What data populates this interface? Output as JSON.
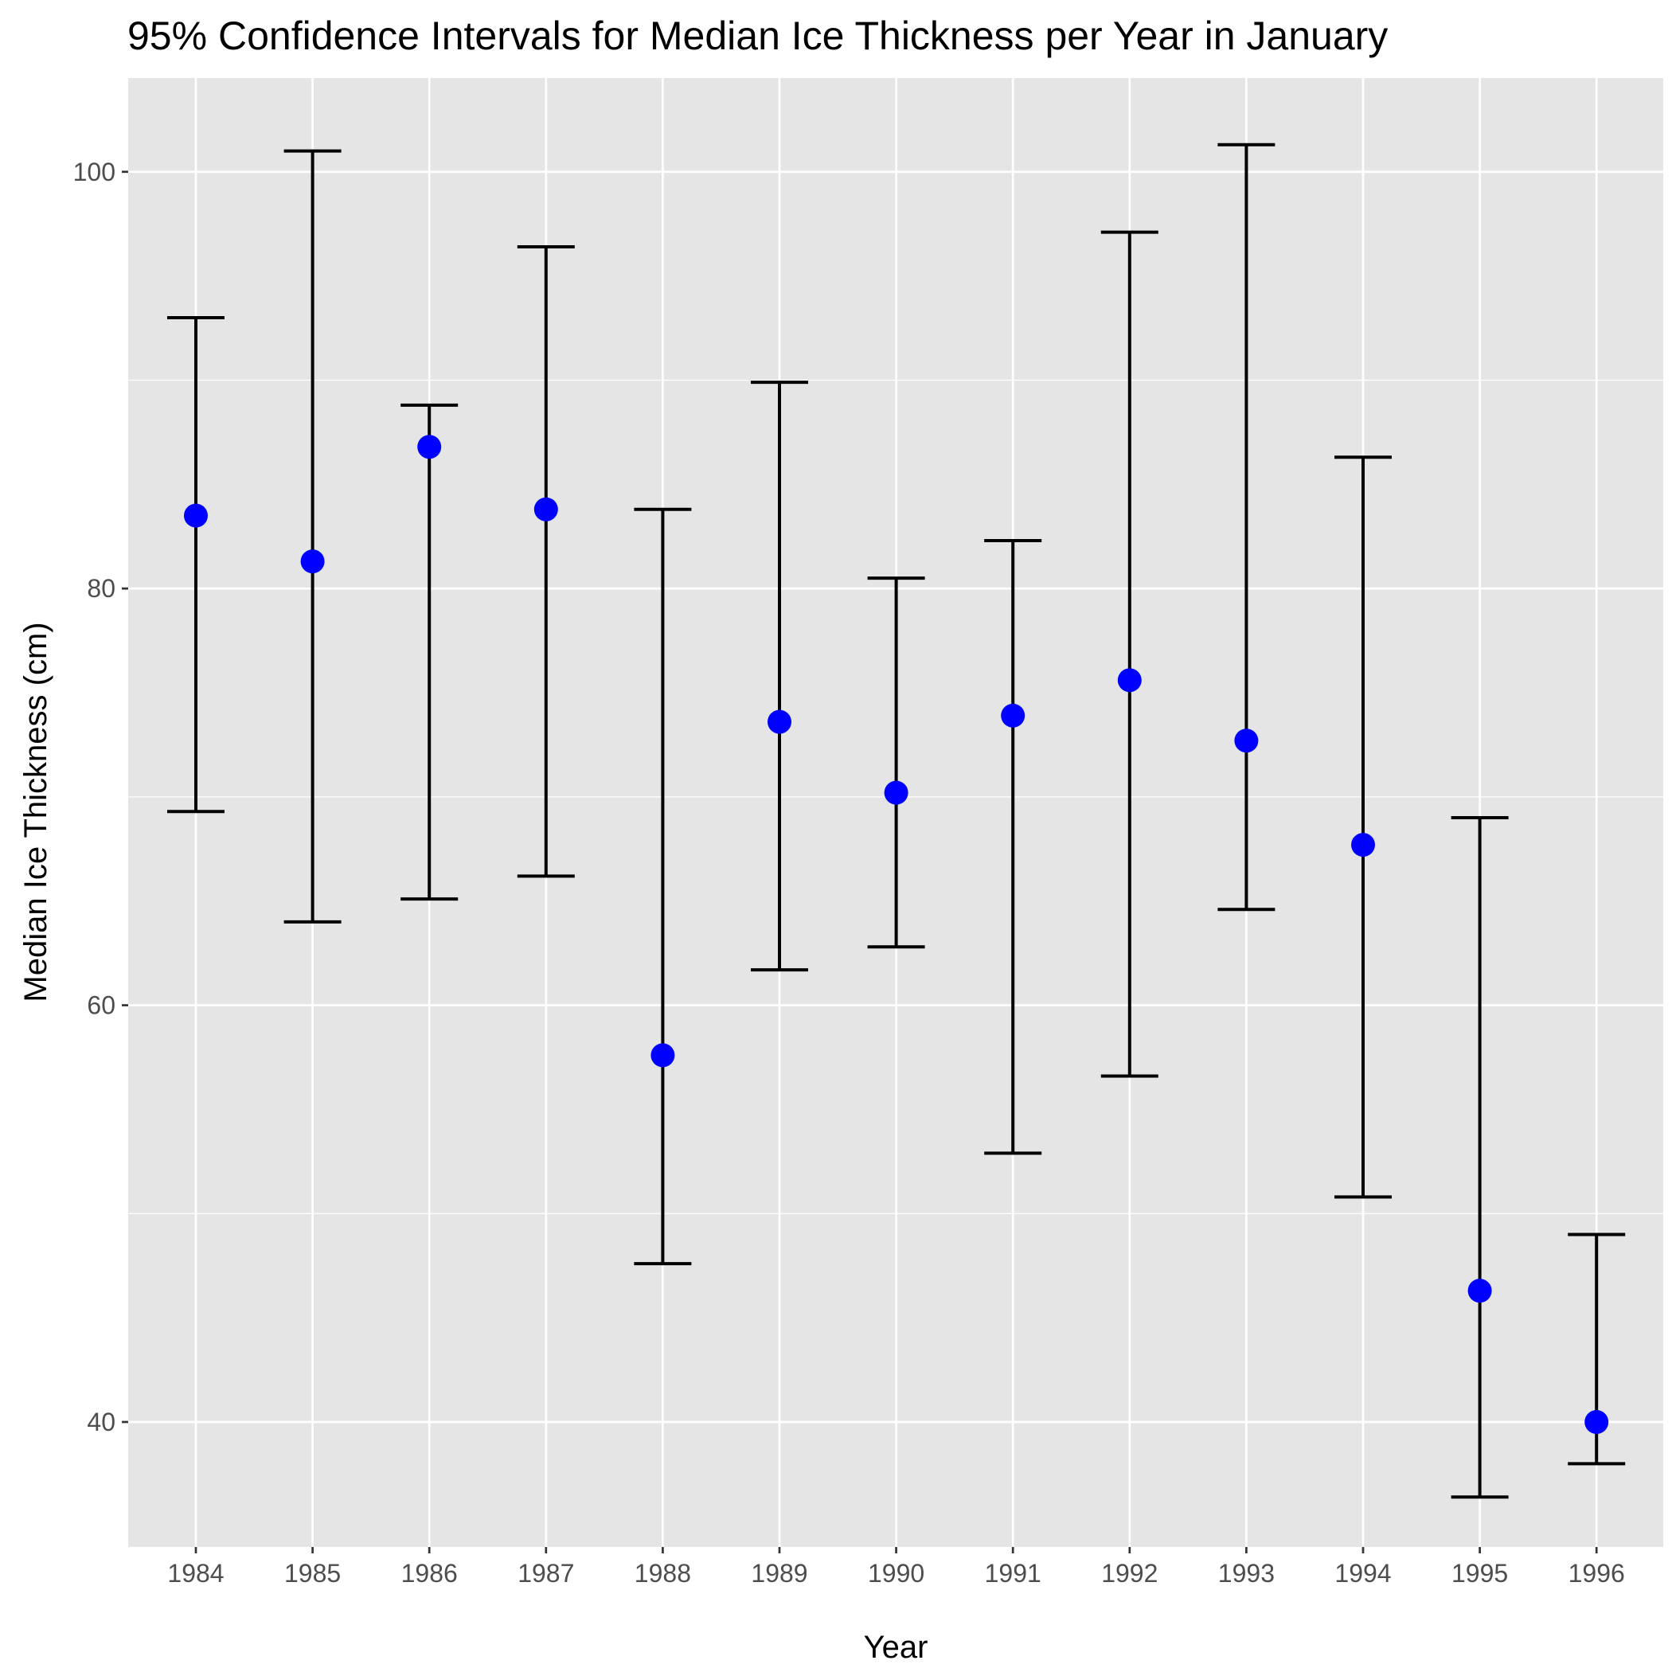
{
  "chart_data": {
    "type": "scatter",
    "title": "95% Confidence Intervals for Median Ice Thickness per Year in January",
    "xlabel": "Year",
    "ylabel": "Median Ice Thickness (cm)",
    "categories": [
      "1984",
      "1985",
      "1986",
      "1987",
      "1988",
      "1989",
      "1990",
      "1991",
      "1992",
      "1993",
      "1994",
      "1995",
      "1996"
    ],
    "series": [
      {
        "median": [
          83.5,
          81.3,
          86.8,
          83.8,
          57.6,
          73.6,
          70.2,
          73.9,
          75.6,
          72.7,
          67.7,
          46.3,
          40.0
        ],
        "lower": [
          69.3,
          64.0,
          65.1,
          66.2,
          47.6,
          61.7,
          62.8,
          52.9,
          56.6,
          64.6,
          50.8,
          36.4,
          38.0
        ],
        "upper": [
          93.0,
          101.0,
          88.8,
          96.4,
          83.8,
          89.9,
          80.5,
          82.3,
          97.1,
          101.3,
          86.3,
          69.0,
          49.0
        ]
      }
    ],
    "ylim": [
      34,
      104.5
    ],
    "yticks": [
      40,
      60,
      80,
      100
    ],
    "grid": true,
    "legend": "none",
    "colors": {
      "panel": "#e5e5e5",
      "grid": "#ffffff",
      "point": "#0000ff",
      "errorbar": "#000000",
      "tick_text": "#4d4d4d"
    }
  }
}
